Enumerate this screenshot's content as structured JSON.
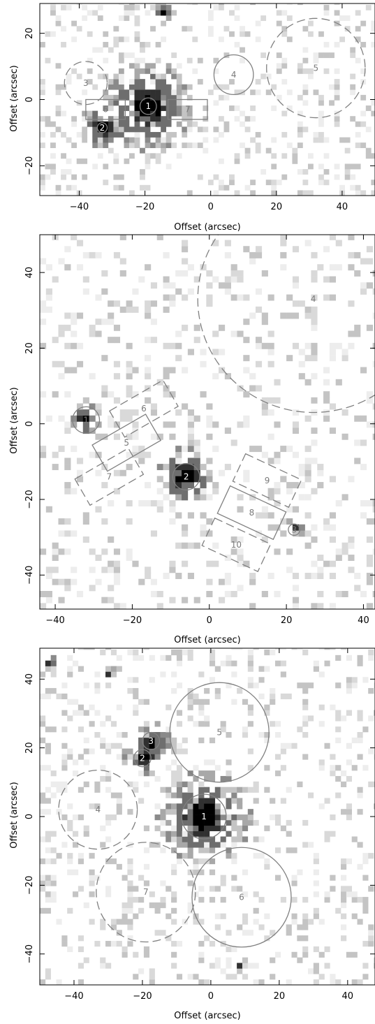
{
  "panels": [
    {
      "id": "top",
      "xlabel": "Offset (arcsec)",
      "ylabel": "Offset (arcsec)",
      "xlim": [
        -52,
        50
      ],
      "ylim": [
        -29,
        29
      ],
      "xticks": [
        -40,
        -20,
        0,
        20,
        40
      ],
      "yticks": [
        -20,
        0,
        20
      ],
      "sources": [
        {
          "x": -19,
          "y": -2,
          "sigma": 2.5,
          "peak": 1.0
        },
        {
          "x": -33,
          "y": -8.5,
          "sigma": 1.2,
          "peak": 0.9
        },
        {
          "x": -14.5,
          "y": 26.5,
          "sigma": 0.6,
          "peak": 0.8
        }
      ],
      "regions": [
        {
          "label": "1",
          "shape": "circle",
          "cx": -19,
          "cy": -2,
          "r": 2.5,
          "dashed": false
        },
        {
          "label": "2",
          "shape": "circle",
          "cx": -33,
          "cy": -8.5,
          "r": 1.5,
          "dashed": false
        },
        {
          "label": "3",
          "shape": "circle",
          "cx": -38,
          "cy": 5,
          "r": 6.5,
          "dashed": true
        },
        {
          "label": "4",
          "shape": "circle",
          "cx": 7,
          "cy": 7.5,
          "r": 6,
          "dashed": false
        },
        {
          "label": "5",
          "shape": "circle",
          "cx": 32,
          "cy": 9.5,
          "r": 15,
          "dashed": true
        },
        {
          "label": "6",
          "shape": "rect",
          "cx": -32,
          "cy": -3,
          "w": 12,
          "h": 6,
          "angle": 0,
          "dashed": false
        },
        {
          "label": "7",
          "shape": "rect",
          "cx": -7,
          "cy": -3,
          "w": 12,
          "h": 6,
          "angle": 0,
          "dashed": false
        }
      ]
    },
    {
      "id": "middle",
      "xlabel": "Offset (arcsec)",
      "ylabel": "Offset (arcsec)",
      "xlim": [
        -44,
        43
      ],
      "ylim": [
        -49,
        50
      ],
      "xticks": [
        -40,
        -20,
        0,
        20,
        40
      ],
      "yticks": [
        -40,
        -20,
        0,
        20,
        40
      ],
      "sources": [
        {
          "x": -32,
          "y": 1,
          "sigma": 0.8,
          "peak": 1.0
        },
        {
          "x": -6,
          "y": -14,
          "sigma": 1.5,
          "peak": 1.0
        },
        {
          "x": 22,
          "y": -28,
          "sigma": 0.5,
          "peak": 0.8
        }
      ],
      "regions": [
        {
          "label": "1",
          "shape": "circle",
          "cx": -32,
          "cy": 1,
          "r": 3.5,
          "dashed": false
        },
        {
          "label": "2",
          "shape": "circle",
          "cx": -6,
          "cy": -14,
          "r": 3.5,
          "dashed": false
        },
        {
          "label": "3",
          "shape": "circle",
          "cx": 22,
          "cy": -28,
          "r": 1.5,
          "dashed": false
        },
        {
          "label": "4",
          "shape": "circle",
          "cx": 27,
          "cy": 33,
          "r": 30,
          "dashed": true
        },
        {
          "label": "5",
          "shape": "rect",
          "cx": -21.5,
          "cy": -5,
          "w": 16,
          "h": 8,
          "angle": 30,
          "dashed": false
        },
        {
          "label": "6",
          "shape": "rect",
          "cx": -17,
          "cy": 4,
          "w": 16,
          "h": 8,
          "angle": 30,
          "dashed": true
        },
        {
          "label": "7",
          "shape": "rect",
          "cx": -26,
          "cy": -14,
          "w": 16,
          "h": 8,
          "angle": 30,
          "dashed": true
        },
        {
          "label": "8",
          "shape": "rect",
          "cx": 11,
          "cy": -23.5,
          "w": 16,
          "h": 8,
          "angle": -25,
          "dashed": false
        },
        {
          "label": "9",
          "shape": "rect",
          "cx": 15,
          "cy": -15,
          "w": 16,
          "h": 8,
          "angle": -25,
          "dashed": true
        },
        {
          "label": "10",
          "shape": "rect",
          "cx": 7,
          "cy": -32,
          "w": 16,
          "h": 8,
          "angle": -25,
          "dashed": true
        }
      ]
    },
    {
      "id": "bottom",
      "xlabel": "Offset (arcsec)",
      "ylabel": "Offset (arcsec)",
      "xlim": [
        -50,
        48
      ],
      "ylim": [
        -49,
        49
      ],
      "xticks": [
        -40,
        -20,
        0,
        20,
        40
      ],
      "yticks": [
        -40,
        -20,
        0,
        20,
        40
      ],
      "sources": [
        {
          "x": -2,
          "y": 0,
          "sigma": 2.5,
          "peak": 1.0
        },
        {
          "x": -20,
          "y": 17,
          "sigma": 1.0,
          "peak": 0.95
        },
        {
          "x": -17.5,
          "y": 22,
          "sigma": 1.0,
          "peak": 0.95
        },
        {
          "x": -30,
          "y": 42,
          "sigma": 0.5,
          "peak": 0.8
        },
        {
          "x": -47,
          "y": 44.5,
          "sigma": 0.5,
          "peak": 0.7
        },
        {
          "x": 9,
          "y": -43,
          "sigma": 0.4,
          "peak": 0.8
        }
      ],
      "regions": [
        {
          "label": "1",
          "shape": "circle",
          "cx": -2,
          "cy": 0,
          "r": 6.5,
          "dashed": false
        },
        {
          "label": "2",
          "shape": "circle",
          "cx": -20,
          "cy": 17,
          "r": 2.5,
          "dashed": false
        },
        {
          "label": "3",
          "shape": "circle",
          "cx": -17.5,
          "cy": 22,
          "r": 2.5,
          "dashed": false
        },
        {
          "label": "4",
          "shape": "circle",
          "cx": -33,
          "cy": 2,
          "r": 11.5,
          "dashed": true
        },
        {
          "label": "5",
          "shape": "circle",
          "cx": 2.5,
          "cy": 24.5,
          "r": 14.5,
          "dashed": false
        },
        {
          "label": "6",
          "shape": "circle",
          "cx": 9,
          "cy": -23.5,
          "r": 14.5,
          "dashed": false
        },
        {
          "label": "7",
          "shape": "circle",
          "cx": -19,
          "cy": -22,
          "r": 14.5,
          "dashed": true
        }
      ]
    }
  ]
}
